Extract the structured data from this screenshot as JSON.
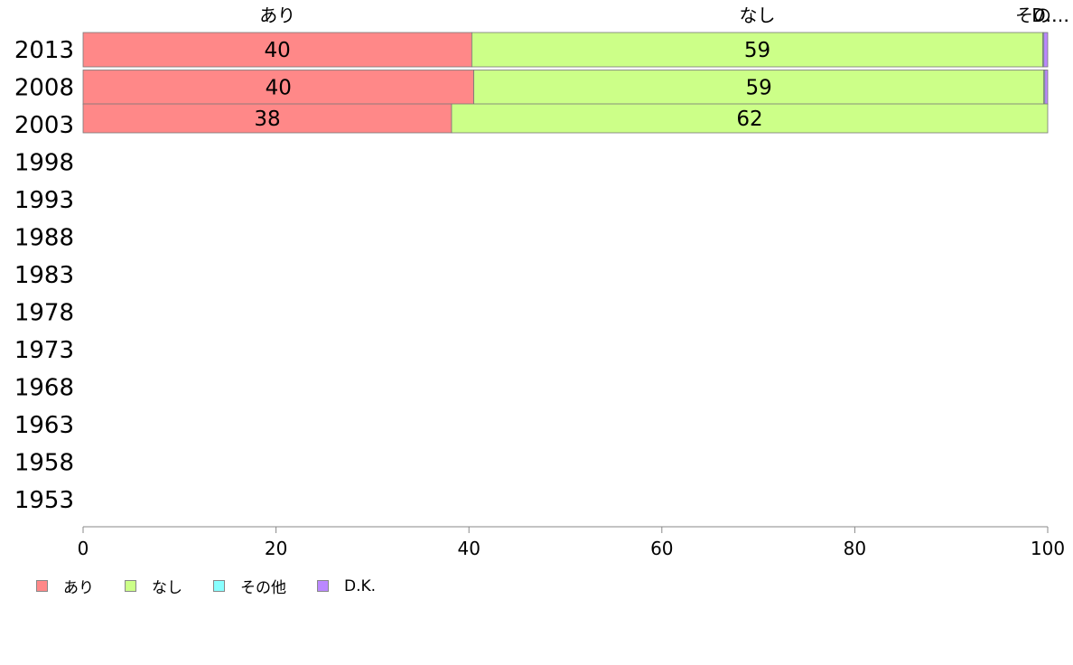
{
  "chart_data": {
    "type": "bar",
    "orientation": "horizontal",
    "stacked": true,
    "categories": [
      "2013",
      "2008",
      "2003",
      "1998",
      "1993",
      "1988",
      "1983",
      "1978",
      "1973",
      "1968",
      "1963",
      "1958",
      "1953"
    ],
    "series": [
      {
        "name": "あり",
        "color": "#ff8888",
        "values": [
          40.3,
          40.5,
          38.2,
          null,
          null,
          null,
          null,
          null,
          null,
          null,
          null,
          null,
          null
        ],
        "labels": [
          "40",
          "40",
          "38",
          "",
          "",
          "",
          "",
          "",
          "",
          "",
          "",
          "",
          ""
        ]
      },
      {
        "name": "なし",
        "color": "#ccff88",
        "values": [
          59.2,
          59.1,
          61.8,
          null,
          null,
          null,
          null,
          null,
          null,
          null,
          null,
          null,
          null
        ],
        "labels": [
          "59",
          "59",
          "62",
          "",
          "",
          "",
          "",
          "",
          "",
          "",
          "",
          "",
          ""
        ]
      },
      {
        "name": "その他",
        "color": "#88ffff",
        "values": [
          0.1,
          0.1,
          0.0,
          null,
          null,
          null,
          null,
          null,
          null,
          null,
          null,
          null,
          null
        ],
        "labels": [
          "",
          "",
          "",
          "",
          "",
          "",
          "",
          "",
          "",
          "",
          "",
          "",
          ""
        ]
      },
      {
        "name": "D.K.",
        "color": "#bb88ff",
        "values": [
          0.4,
          0.3,
          0.0,
          null,
          null,
          null,
          null,
          null,
          null,
          null,
          null,
          null,
          null
        ],
        "labels": [
          "",
          "",
          "",
          "",
          "",
          "",
          "",
          "",
          "",
          "",
          "",
          "",
          ""
        ]
      }
    ],
    "top_labels": [
      "あり",
      "なし",
      "その…",
      "D.…"
    ],
    "xlim": [
      0,
      100
    ],
    "xticks": [
      "0",
      "20",
      "40",
      "60",
      "80",
      "100"
    ],
    "grid": false,
    "legend_position": "bottom-left"
  }
}
